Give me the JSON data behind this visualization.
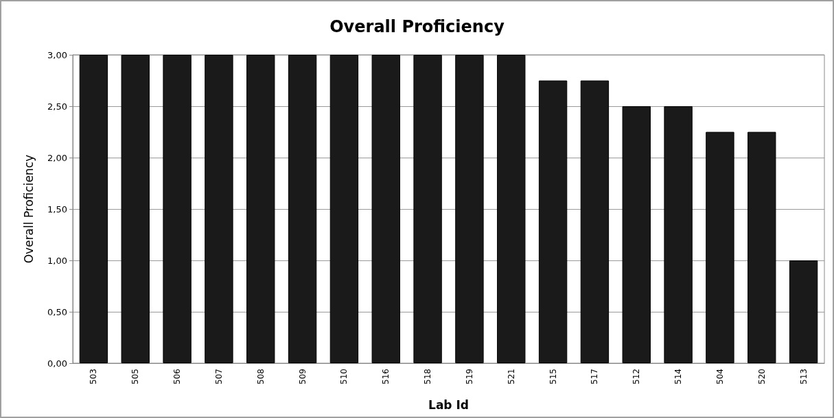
{
  "chart_data": {
    "type": "bar",
    "title": "Overall Proficiency",
    "xlabel": "Lab Id",
    "ylabel": "Overall Proficiency",
    "categories": [
      "503",
      "505",
      "506",
      "507",
      "508",
      "509",
      "510",
      "516",
      "518",
      "519",
      "521",
      "515",
      "517",
      "512",
      "514",
      "504",
      "520",
      "513"
    ],
    "values": [
      3,
      3,
      3,
      3,
      3,
      3,
      3,
      3,
      3,
      3,
      3,
      2.75,
      2.75,
      2.5,
      2.5,
      2.25,
      2.25,
      1
    ],
    "color": "#1a1a1a",
    "ylim": [
      0,
      3
    ],
    "yticks": [
      {
        "value": 0,
        "label": "0,00"
      },
      {
        "value": 0.5,
        "label": "0,50"
      },
      {
        "value": 1,
        "label": "1,00"
      },
      {
        "value": 1.5,
        "label": "1,50"
      },
      {
        "value": 2,
        "label": "2,00"
      },
      {
        "value": 2.5,
        "label": "2,50"
      },
      {
        "value": 3,
        "label": "3,00"
      }
    ],
    "grid": "y"
  }
}
